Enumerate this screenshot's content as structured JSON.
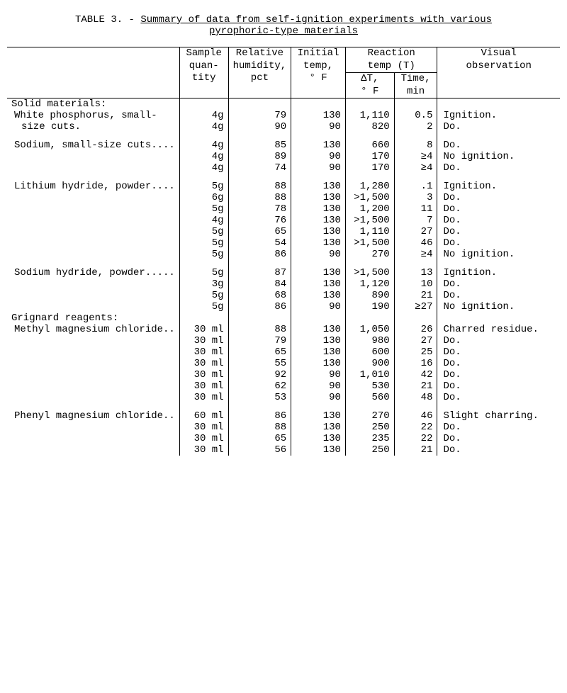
{
  "title": {
    "prefix": "TABLE 3. - ",
    "underlined1": "Summary of data from self-ignition experiments with various",
    "underlined2": "pyrophoric-type materials"
  },
  "columns": {
    "sample": [
      "Sample",
      "quan-",
      "tity"
    ],
    "humidity": [
      "Relative",
      "humidity,",
      "pct"
    ],
    "initial": [
      "Initial",
      "temp,",
      "° F"
    ],
    "reaction_group": "Reaction",
    "reaction_group2": "temp (T)",
    "dt": [
      "ΔT,",
      "° F"
    ],
    "time": [
      "Time,",
      "min"
    ],
    "visual": [
      "Visual",
      "observation"
    ]
  },
  "sections": [
    {
      "header": "Solid materials:",
      "materials": [
        {
          "name_lines": [
            "White phosphorus, small-",
            "size cuts."
          ],
          "rows": [
            {
              "qty": "4g",
              "rh": "79",
              "it": "130",
              "dt": "1,110",
              "time": "0.5",
              "obs": "Ignition."
            },
            {
              "qty": "4g",
              "rh": "90",
              "it": "90",
              "dt": "820",
              "time": "2",
              "obs": "Do.",
              "obs_indent": true
            }
          ]
        },
        {
          "name_lines": [
            "Sodium, small-size cuts...."
          ],
          "rows": [
            {
              "qty": "4g",
              "rh": "85",
              "it": "130",
              "dt": "660",
              "time": "8",
              "obs": "Do.",
              "obs_indent": true
            },
            {
              "qty": "4g",
              "rh": "89",
              "it": "90",
              "dt": "170",
              "time": "≥4",
              "obs": "No ignition."
            },
            {
              "qty": "4g",
              "rh": "74",
              "it": "90",
              "dt": "170",
              "time": "≥4",
              "obs": "Do.",
              "obs_indent": true
            }
          ]
        },
        {
          "name_lines": [
            "Lithium hydride, powder...."
          ],
          "rows": [
            {
              "qty": "5g",
              "rh": "88",
              "it": "130",
              "dt": "1,280",
              "time": ".1",
              "obs": "Ignition."
            },
            {
              "qty": "6g",
              "rh": "88",
              "it": "130",
              "dt": ">1,500",
              "time": "3",
              "obs": "Do.",
              "obs_indent": true
            },
            {
              "qty": "5g",
              "rh": "78",
              "it": "130",
              "dt": "1,200",
              "time": "11",
              "obs": "Do.",
              "obs_indent": true
            },
            {
              "qty": "4g",
              "rh": "76",
              "it": "130",
              "dt": ">1,500",
              "time": "7",
              "obs": "Do.",
              "obs_indent": true
            },
            {
              "qty": "5g",
              "rh": "65",
              "it": "130",
              "dt": "1,110",
              "time": "27",
              "obs": "Do.",
              "obs_indent": true
            },
            {
              "qty": "5g",
              "rh": "54",
              "it": "130",
              "dt": ">1,500",
              "time": "46",
              "obs": "Do.",
              "obs_indent": true
            },
            {
              "qty": "5g",
              "rh": "86",
              "it": "90",
              "dt": "270",
              "time": "≥4",
              "obs": "No ignition."
            }
          ]
        },
        {
          "name_lines": [
            "Sodium hydride, powder....."
          ],
          "rows": [
            {
              "qty": "5g",
              "rh": "87",
              "it": "130",
              "dt": ">1,500",
              "time": "13",
              "obs": "Ignition."
            },
            {
              "qty": "3g",
              "rh": "84",
              "it": "130",
              "dt": "1,120",
              "time": "10",
              "obs": "Do.",
              "obs_indent": true
            },
            {
              "qty": "5g",
              "rh": "68",
              "it": "130",
              "dt": "890",
              "time": "21",
              "obs": "Do.",
              "obs_indent": true
            },
            {
              "qty": "5g",
              "rh": "86",
              "it": "90",
              "dt": "190",
              "time": "≥27",
              "obs": "No ignition."
            }
          ]
        }
      ]
    },
    {
      "header": "Grignard reagents:",
      "materials": [
        {
          "name_lines": [
            "Methyl magnesium chloride.."
          ],
          "rows": [
            {
              "qty": "30 ml",
              "rh": "88",
              "it": "130",
              "dt": "1,050",
              "time": "26",
              "obs": "Charred residue."
            },
            {
              "qty": "30 ml",
              "rh": "79",
              "it": "130",
              "dt": "980",
              "time": "27",
              "obs": "Do.",
              "obs_indent": true
            },
            {
              "qty": "30 ml",
              "rh": "65",
              "it": "130",
              "dt": "600",
              "time": "25",
              "obs": "Do.",
              "obs_indent": true
            },
            {
              "qty": "30 ml",
              "rh": "55",
              "it": "130",
              "dt": "900",
              "time": "16",
              "obs": "Do.",
              "obs_indent": true
            },
            {
              "qty": "30 ml",
              "rh": "92",
              "it": "90",
              "dt": "1,010",
              "time": "42",
              "obs": "Do.",
              "obs_indent": true
            },
            {
              "qty": "30 ml",
              "rh": "62",
              "it": "90",
              "dt": "530",
              "time": "21",
              "obs": "Do.",
              "obs_indent": true
            },
            {
              "qty": "30 ml",
              "rh": "53",
              "it": "90",
              "dt": "560",
              "time": "48",
              "obs": "Do.",
              "obs_indent": true
            }
          ]
        },
        {
          "name_lines": [
            "Phenyl magnesium chloride.."
          ],
          "rows": [
            {
              "qty": "60 ml",
              "rh": "86",
              "it": "130",
              "dt": "270",
              "time": "46",
              "obs": "Slight charring."
            },
            {
              "qty": "30 ml",
              "rh": "88",
              "it": "130",
              "dt": "250",
              "time": "22",
              "obs": "Do.",
              "obs_indent": true
            },
            {
              "qty": "30 ml",
              "rh": "65",
              "it": "130",
              "dt": "235",
              "time": "22",
              "obs": "Do.",
              "obs_indent": true
            },
            {
              "qty": "30 ml",
              "rh": "56",
              "it": "130",
              "dt": "250",
              "time": "21",
              "obs": "Do.",
              "obs_indent": true
            }
          ]
        }
      ]
    }
  ],
  "style": {
    "font_family": "Courier New",
    "font_size_pt": 11,
    "text_color": "#000000",
    "background_color": "#ffffff",
    "rule_color": "#000000",
    "col_widths_pct": [
      30,
      9,
      11,
      10,
      9,
      8,
      23
    ]
  }
}
